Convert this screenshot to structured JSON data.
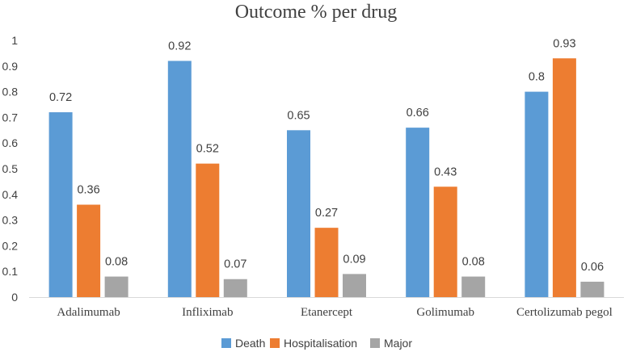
{
  "chart_data": {
    "type": "bar",
    "title": "Outcome % per drug",
    "xlabel": "",
    "ylabel": "",
    "ylim": [
      0,
      1
    ],
    "yticks": [
      "0",
      "0.1",
      "0.2",
      "0.3",
      "0.4",
      "0.5",
      "0.6",
      "0.7",
      "0.8",
      "0.9",
      "1"
    ],
    "categories": [
      "Adalimumab",
      "Infliximab",
      "Etanercept",
      "Golimumab",
      "Certolizumab pegol"
    ],
    "series": [
      {
        "name": "Death",
        "color": "#5B9BD5",
        "values": [
          0.72,
          0.92,
          0.65,
          0.66,
          0.8
        ],
        "labels": [
          "0.72",
          "0.92",
          "0.65",
          "0.66",
          "0.8"
        ]
      },
      {
        "name": "Hospitalisation",
        "color": "#ED7D31",
        "values": [
          0.36,
          0.52,
          0.27,
          0.43,
          0.93
        ],
        "labels": [
          "0.36",
          "0.52",
          "0.27",
          "0.43",
          "0.93"
        ]
      },
      {
        "name": "Major",
        "color": "#A5A5A5",
        "values": [
          0.08,
          0.07,
          0.09,
          0.08,
          0.06
        ],
        "labels": [
          "0.08",
          "0.07",
          "0.09",
          "0.08",
          "0.06"
        ]
      }
    ],
    "legend_position": "bottom",
    "grid": false
  }
}
